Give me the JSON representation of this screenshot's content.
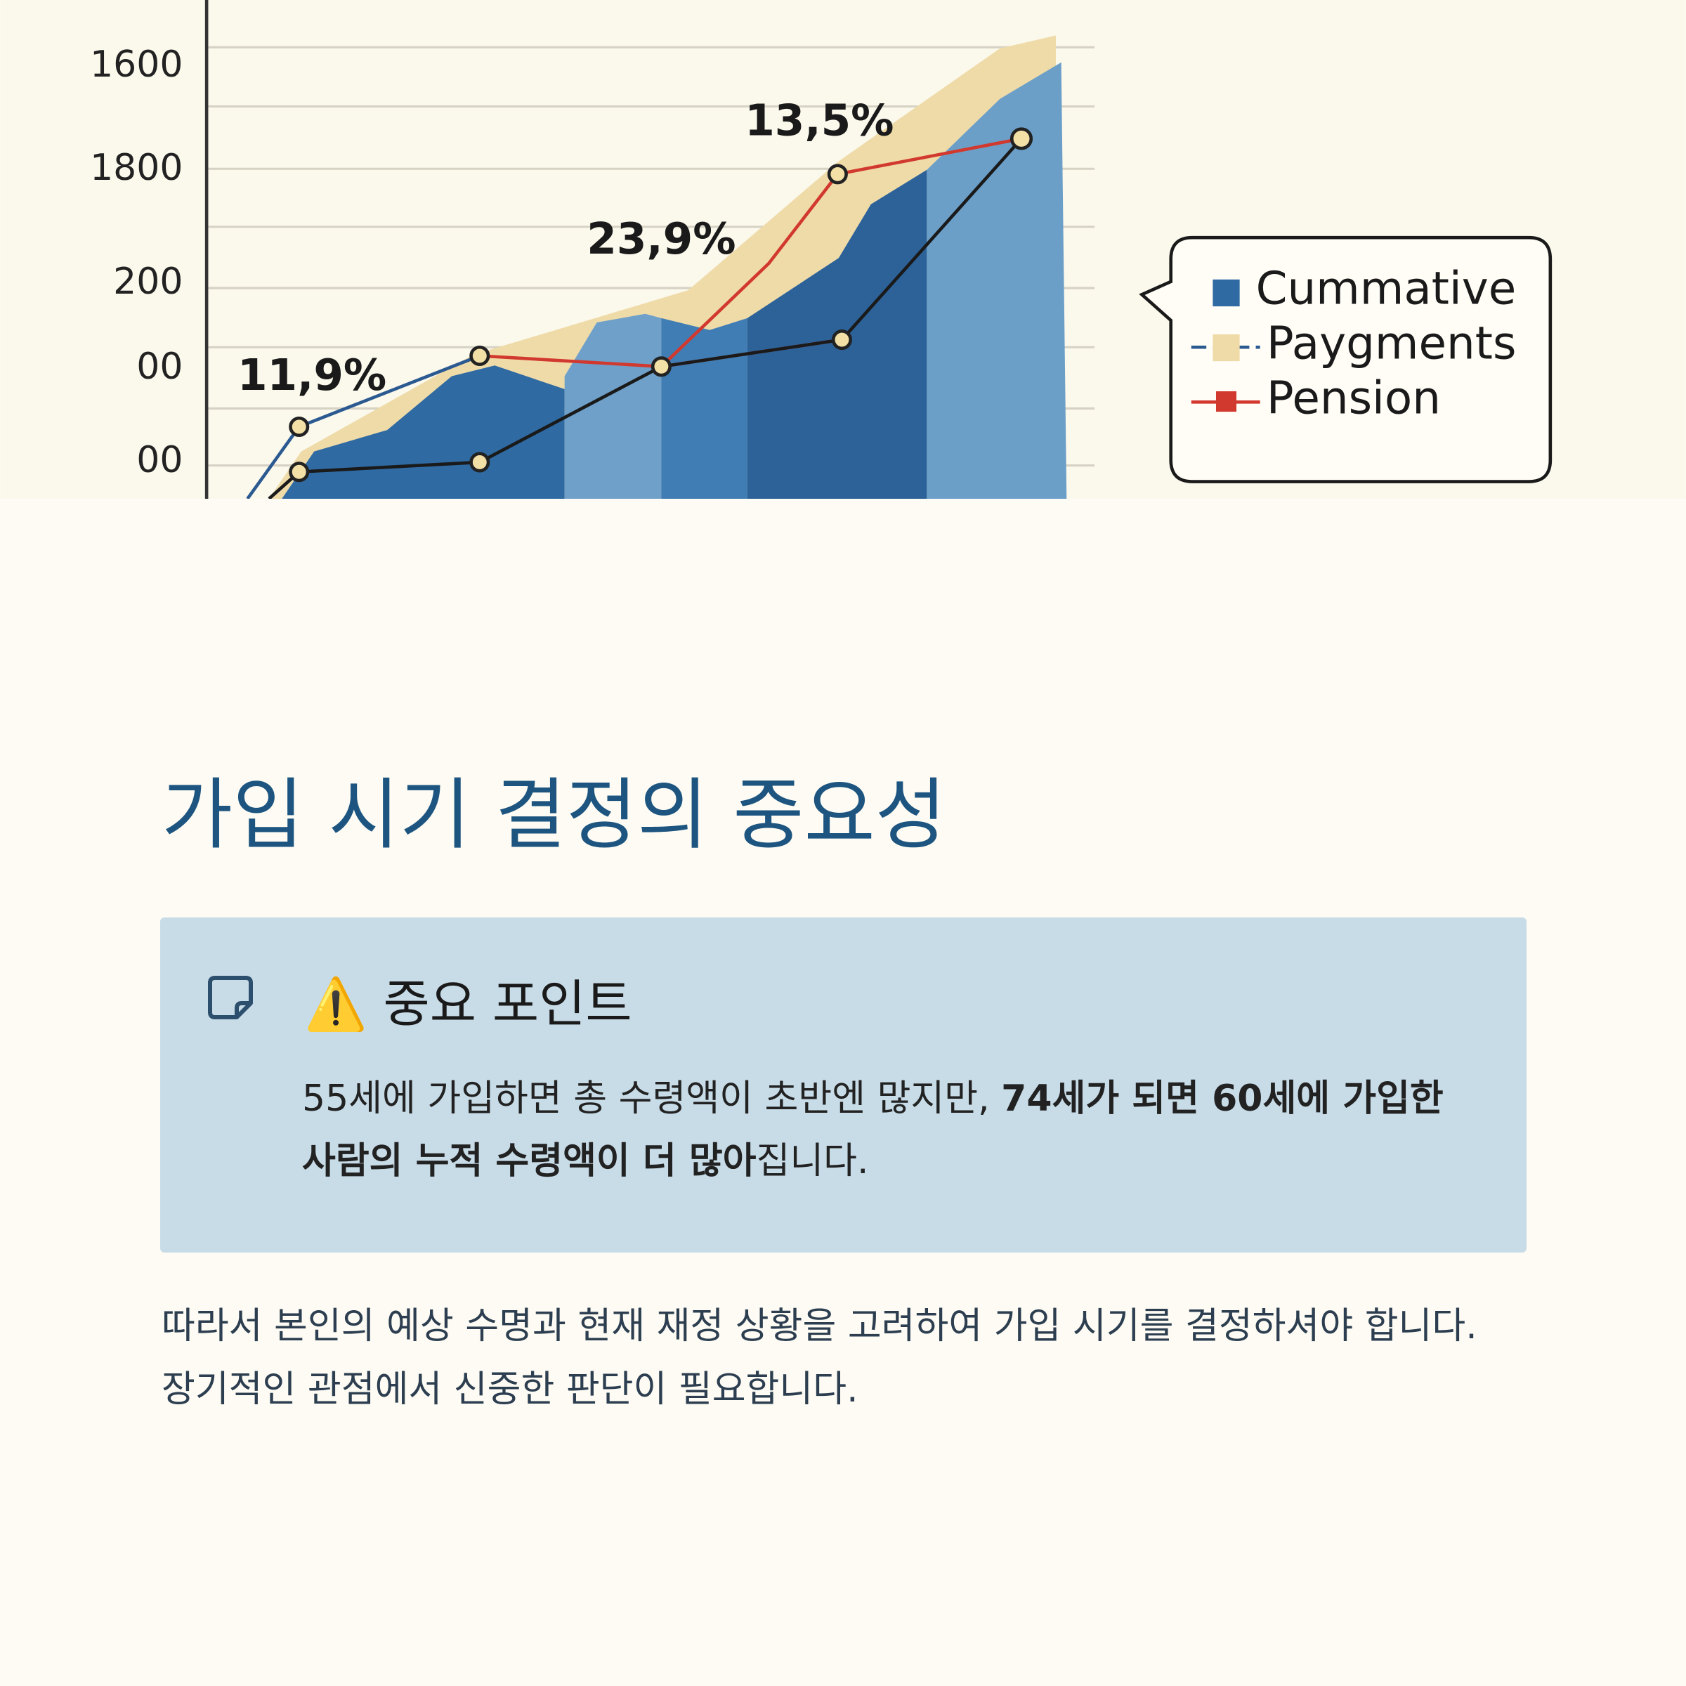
{
  "figure": {
    "y_axis_labels": [
      "1600",
      "1800",
      "200",
      "00",
      "00"
    ],
    "percent_labels": [
      "11,9%",
      "23,9%",
      "13,5%"
    ],
    "legend": [
      "Cummative",
      "Paygments",
      "Pension"
    ]
  },
  "heading": "가입 시기 결정의 중요성",
  "callout": {
    "title": "⚠️ 중요 포인트",
    "body": [
      {
        "text": "55세에 가입하면 총 수령액이 초반엔 많지만, ",
        "bold": false
      },
      {
        "text": "74세가 되면 60세에 가입한 사람의 누적 수령액이 더 많아",
        "bold": true
      },
      {
        "text": "집니다.",
        "bold": false
      }
    ]
  },
  "paragraph": "따라서 본인의 예상 수명과 현재 재정 상황을 고려하여 가입 시기를 결정하셔야 합니다. 장기적인 관점에서 신중한 판단이 필요합니다."
}
